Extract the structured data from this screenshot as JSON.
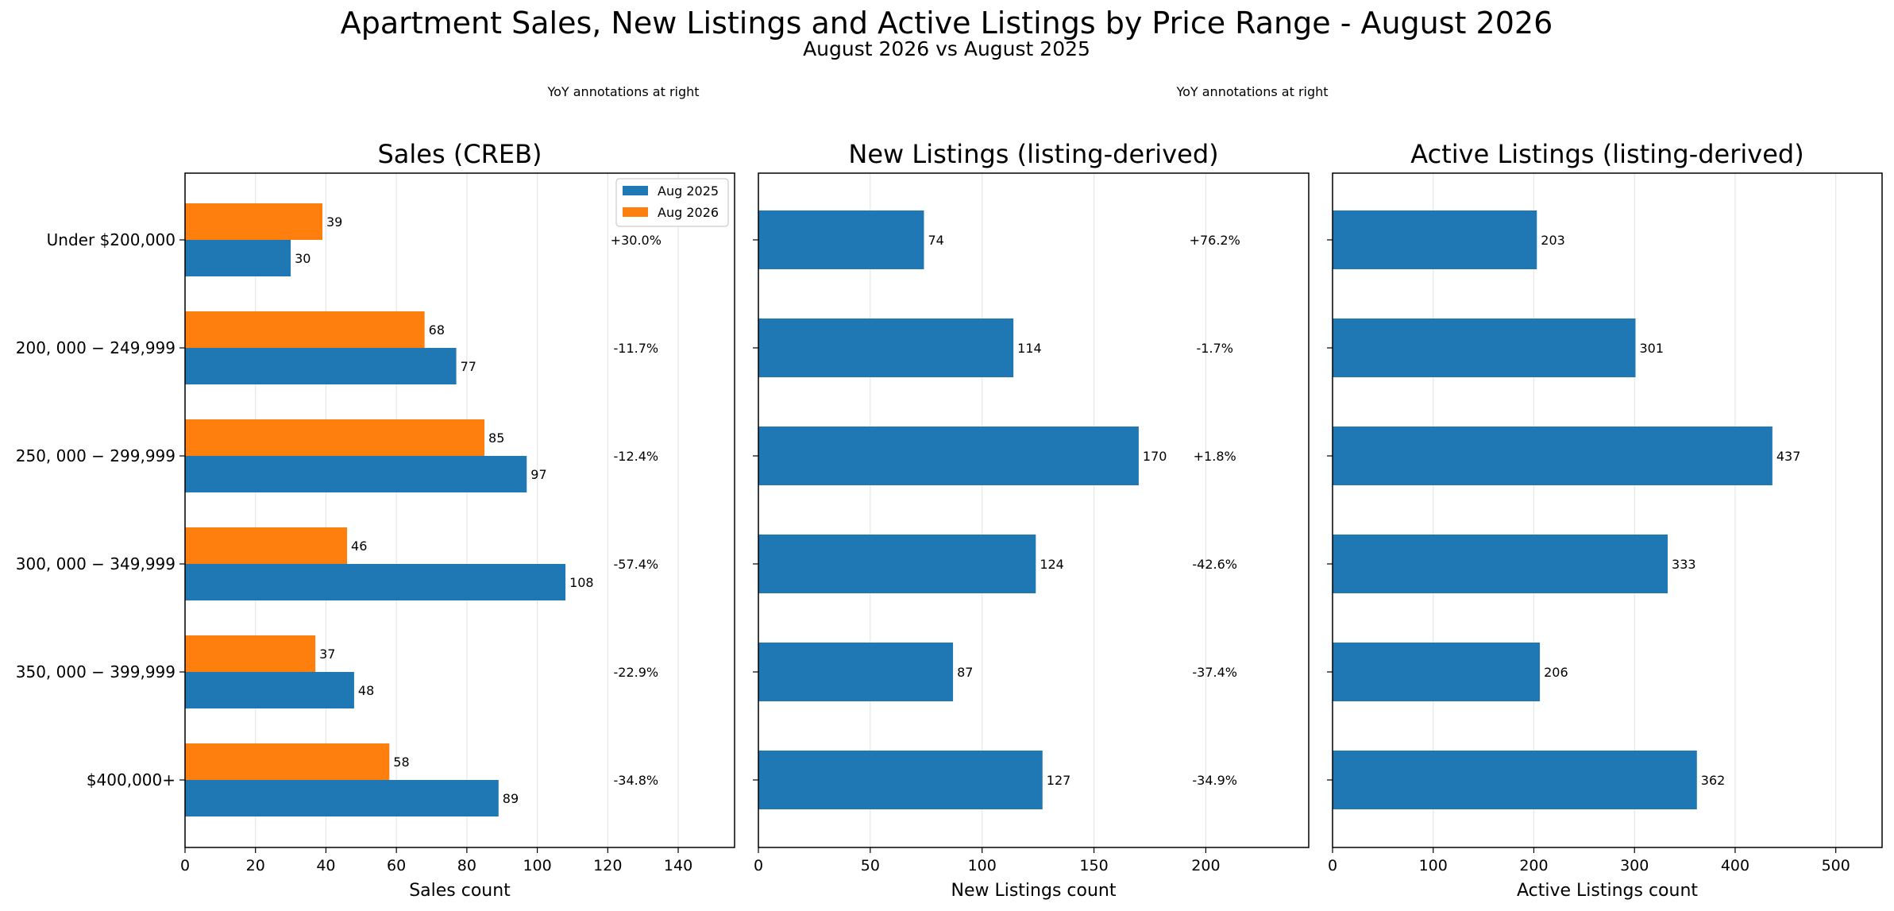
{
  "figure": {
    "title": "Apartment Sales, New Listings and Active Listings by Price Range - August 2026",
    "subtitle": "August 2026 vs August 2025",
    "notes": [
      "YoY annotations at right",
      "YoY annotations at right"
    ]
  },
  "chart_data": [
    {
      "type": "bar",
      "orientation": "horizontal",
      "title": "Sales (CREB)",
      "xlabel": "Sales count",
      "ylabel": "",
      "xlim": [
        0,
        156
      ],
      "xticks": [
        0,
        20,
        40,
        60,
        80,
        100,
        120,
        140
      ],
      "grid": "vertical",
      "legend": "top-right",
      "categories": [
        "Under $200,000",
        "$200,000-$249,999",
        "$250,000-$299,999",
        "$300,000-$349,999",
        "$350,000-$399,999",
        "$400,000+"
      ],
      "category_tick_labels": [
        "Under $200,000",
        "200, 000 − 249,999",
        "250, 000 − 299,999",
        "300, 000 − 349,999",
        "350, 000 − 399,999",
        "$400,000+"
      ],
      "series": [
        {
          "name": "Aug 2025",
          "color": "#1f77b4",
          "values": [
            30,
            77,
            97,
            108,
            48,
            89
          ]
        },
        {
          "name": "Aug 2026",
          "color": "#ff7f0e",
          "values": [
            39,
            68,
            85,
            46,
            37,
            58
          ]
        }
      ],
      "annotations": [
        "+30.0%",
        "-11.7%",
        "-12.4%",
        "-57.4%",
        "-22.9%",
        "-34.8%"
      ],
      "annotation_x": 128
    },
    {
      "type": "bar",
      "orientation": "horizontal",
      "title": "New Listings (listing-derived)",
      "xlabel": "New Listings count",
      "ylabel": "",
      "xlim": [
        0,
        246
      ],
      "xticks": [
        0,
        50,
        100,
        150,
        200
      ],
      "grid": "vertical",
      "categories": [
        "Under $200,000",
        "$200,000-$249,999",
        "$250,000-$299,999",
        "$300,000-$349,999",
        "$350,000-$399,999",
        "$400,000+"
      ],
      "series": [
        {
          "name": "",
          "color": "#1f77b4",
          "values": [
            74,
            114,
            170,
            124,
            87,
            127
          ]
        }
      ],
      "annotations": [
        "+76.2%",
        "-1.7%",
        "+1.8%",
        "-42.6%",
        "-37.4%",
        "-34.9%"
      ],
      "annotation_x": 204
    },
    {
      "type": "bar",
      "orientation": "horizontal",
      "title": "Active Listings (listing-derived)",
      "xlabel": "Active Listings count",
      "ylabel": "",
      "xlim": [
        0,
        546
      ],
      "xticks": [
        0,
        100,
        200,
        300,
        400,
        500
      ],
      "grid": "vertical",
      "categories": [
        "Under $200,000",
        "$200,000-$249,999",
        "$250,000-$299,999",
        "$300,000-$349,999",
        "$350,000-$399,999",
        "$400,000+"
      ],
      "series": [
        {
          "name": "",
          "color": "#1f77b4",
          "values": [
            203,
            301,
            437,
            333,
            206,
            362
          ]
        }
      ],
      "annotations": []
    }
  ]
}
